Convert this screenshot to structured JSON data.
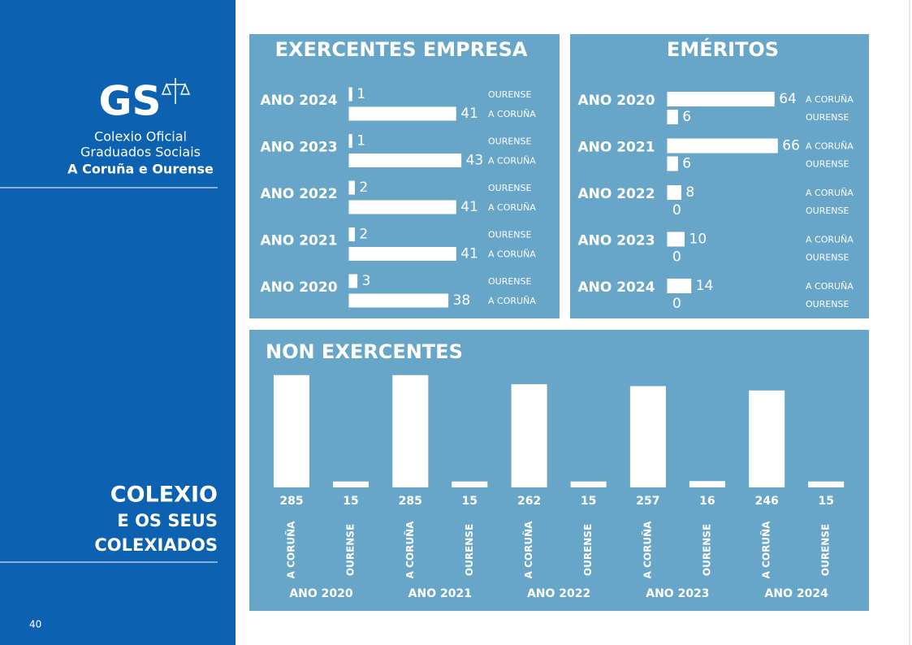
{
  "sidebar": {
    "logo": "GS",
    "org_lines": [
      "Colexio Oficial",
      "Graduados Sociais",
      "A Coruña e Ourense"
    ],
    "section_lines": [
      "COLEXIO",
      "E OS SEUS",
      "COLEXIADOS"
    ],
    "page_number": "40"
  },
  "chart_data": [
    {
      "type": "hbar",
      "title": "EXERCENTES EMPRESA",
      "categories": [
        "ANO 2024",
        "ANO 2023",
        "ANO 2022",
        "ANO 2021",
        "ANO 2020"
      ],
      "series": [
        {
          "name": "OURENSE",
          "color": "#ffffff",
          "values": [
            1,
            1,
            2,
            2,
            3
          ]
        },
        {
          "name": "A CORUÑA",
          "color": "#ffffff",
          "values": [
            41,
            43,
            41,
            41,
            38
          ]
        }
      ]
    },
    {
      "type": "hbar",
      "title": "EMÉRITOS",
      "categories": [
        "ANO 2020",
        "ANO 2021",
        "ANO 2022",
        "ANO 2023",
        "ANO 2024"
      ],
      "series": [
        {
          "name": "A CORUÑA",
          "color": "#ffffff",
          "values": [
            64,
            66,
            8,
            10,
            14
          ]
        },
        {
          "name": "OURENSE",
          "color": "#ffffff",
          "values": [
            6,
            6,
            0,
            0,
            0
          ]
        }
      ]
    },
    {
      "type": "bar",
      "title": "NON EXERCENTES",
      "categories": [
        "ANO 2020",
        "ANO 2021",
        "ANO 2022",
        "ANO 2023",
        "ANO 2024"
      ],
      "series": [
        {
          "name": "A CORUÑA",
          "color": "#ffffff",
          "values": [
            285,
            285,
            262,
            257,
            246
          ]
        },
        {
          "name": "OURENSE",
          "color": "#ffffff",
          "values": [
            15,
            15,
            15,
            16,
            15
          ]
        }
      ]
    }
  ]
}
